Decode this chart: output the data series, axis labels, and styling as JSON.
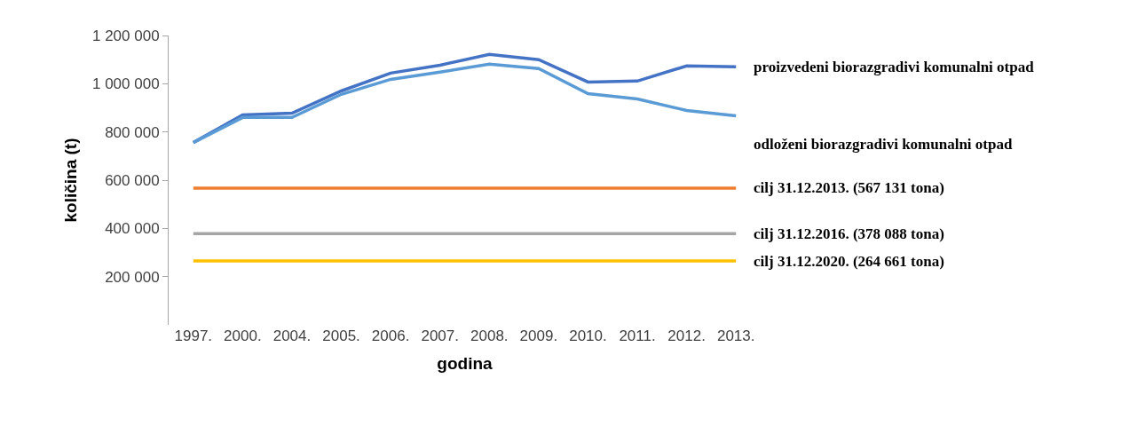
{
  "chart_data": {
    "type": "line",
    "xlabel": "godina",
    "ylabel": "količina (t)",
    "categories": [
      "1997.",
      "2000.",
      "2004.",
      "2005.",
      "2006.",
      "2007.",
      "2008.",
      "2009.",
      "2010.",
      "2011.",
      "2012.",
      "2013."
    ],
    "series": [
      {
        "name": "proizvedeni biorazgradivi komunalni otpad",
        "color": "#4472c4",
        "values": [
          756000,
          871000,
          878000,
          970000,
          1044000,
          1077000,
          1122000,
          1100000,
          1007000,
          1011000,
          1074000,
          1070000
        ]
      },
      {
        "name": "odloženi biorazgradivi komunalni otpad",
        "color": "#5b9bd5",
        "values": [
          756000,
          860000,
          860000,
          956000,
          1018000,
          1048000,
          1081000,
          1063000,
          959000,
          937000,
          889000,
          867000
        ]
      },
      {
        "name": "cilj 31.12.2013. (567 131 tona)",
        "color": "#ed7d31",
        "values": [
          567131,
          567131,
          567131,
          567131,
          567131,
          567131,
          567131,
          567131,
          567131,
          567131,
          567131,
          567131
        ]
      },
      {
        "name": "cilj 31.12.2016. (378 088 tona)",
        "color": "#a5a5a5",
        "values": [
          378088,
          378088,
          378088,
          378088,
          378088,
          378088,
          378088,
          378088,
          378088,
          378088,
          378088,
          378088
        ]
      },
      {
        "name": "cilj 31.12.2020. (264 661 tona)",
        "color": "#ffc000",
        "values": [
          264661,
          264661,
          264661,
          264661,
          264661,
          264661,
          264661,
          264661,
          264661,
          264661,
          264661,
          264661
        ]
      }
    ],
    "ylim": [
      0,
      1200000
    ],
    "yticks": [
      {
        "value": 200000,
        "label": "200 000"
      },
      {
        "value": 400000,
        "label": "400 000"
      },
      {
        "value": 600000,
        "label": "600 000"
      },
      {
        "value": 800000,
        "label": "800 000"
      },
      {
        "value": 1000000,
        "label": "1 000 000"
      },
      {
        "value": 1200000,
        "label": "1 200 000"
      }
    ],
    "grid": false,
    "legend": false,
    "marker": "none",
    "line_style": "solid"
  }
}
